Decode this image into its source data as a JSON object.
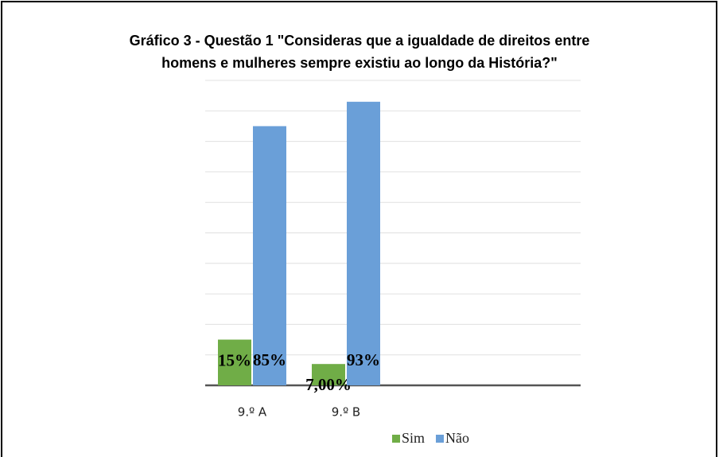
{
  "chart_data": {
    "type": "bar",
    "title": [
      "Gráfico 3 - Questão 1 \"Consideras que a igualdade de direitos entre",
      "homens e mulheres sempre existiu ao longo da História?\""
    ],
    "categories": [
      "9.º A",
      "9.º B",
      null,
      null
    ],
    "series": [
      {
        "name": "Sim",
        "color": "#70ad47",
        "values": [
          15,
          7,
          null,
          null
        ],
        "value_labels": [
          "15%",
          "7,00%",
          null,
          null
        ]
      },
      {
        "name": "Não",
        "color": "#6a9fd8",
        "values": [
          85,
          93,
          null,
          null
        ],
        "value_labels": [
          "85%",
          "93%",
          null,
          null
        ]
      }
    ],
    "ylim": [
      0,
      100
    ],
    "yticks": [
      0,
      10,
      20,
      30,
      40,
      50,
      60,
      70,
      80,
      90,
      100
    ],
    "ytick_labels": false,
    "grid": true,
    "legend": "bottom"
  }
}
